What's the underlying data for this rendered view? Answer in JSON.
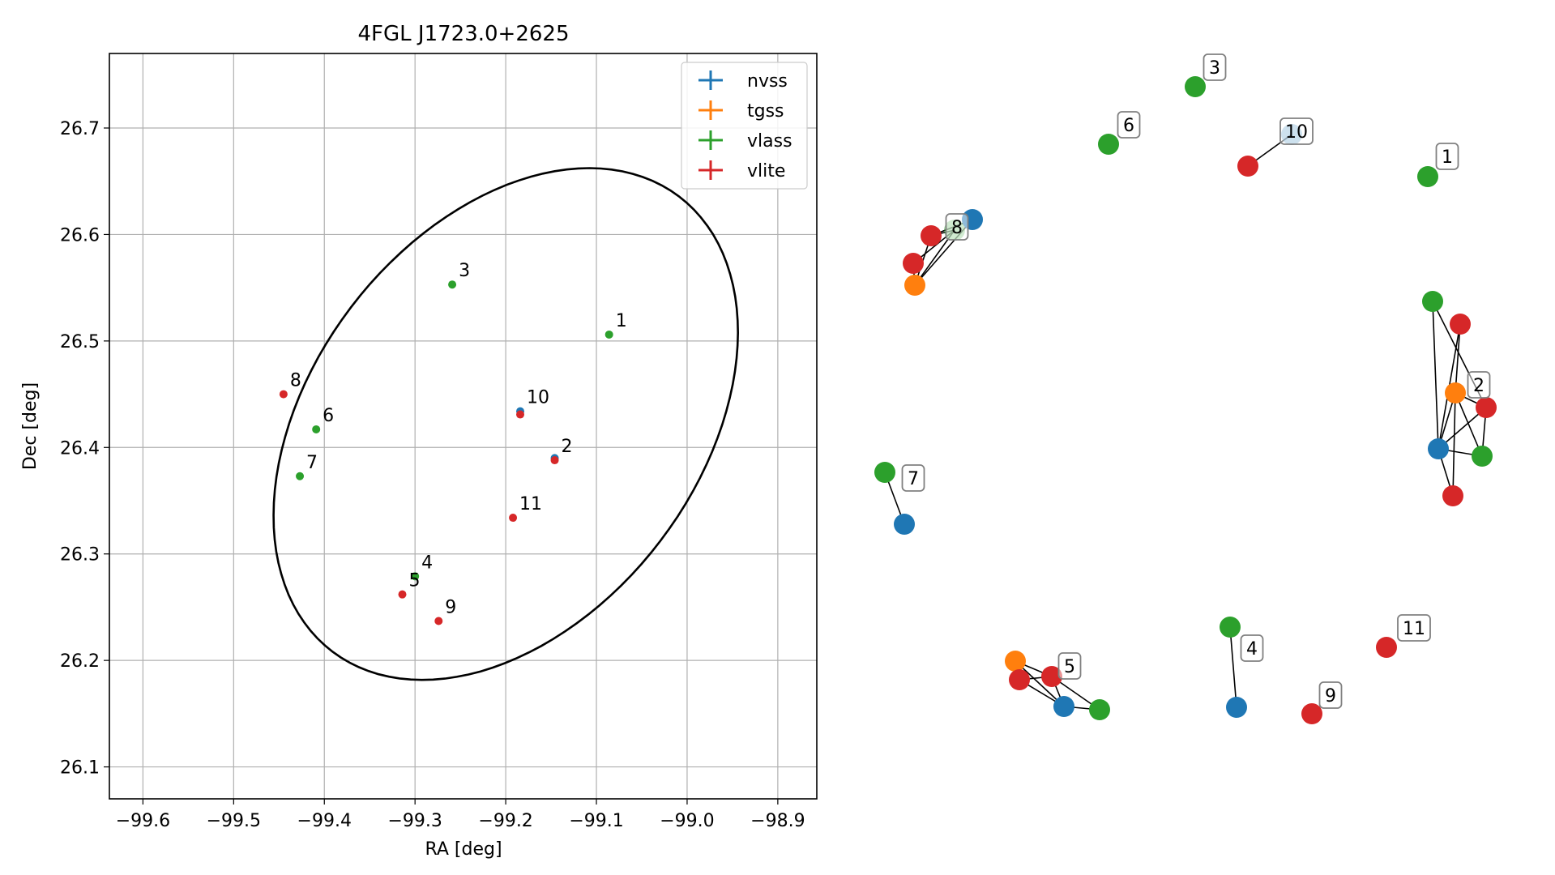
{
  "chart_data": [
    {
      "type": "scatter",
      "title": "4FGL J1723.0+2625",
      "xlabel": "RA [deg]",
      "ylabel": "Dec [deg]",
      "xlim": [
        -99.637,
        -98.857
      ],
      "ylim": [
        26.07,
        26.77
      ],
      "xticks": [
        -99.6,
        -99.5,
        -99.4,
        -99.3,
        -99.2,
        -99.1,
        -99.0,
        -98.9
      ],
      "xtick_labels": [
        "−99.6",
        "−99.5",
        "−99.4",
        "−99.3",
        "−99.2",
        "−99.1",
        "−99.0",
        "−98.9"
      ],
      "yticks": [
        26.1,
        26.2,
        26.3,
        26.4,
        26.5,
        26.6,
        26.7
      ],
      "ytick_labels": [
        "26.1",
        "26.2",
        "26.3",
        "26.4",
        "26.5",
        "26.6",
        "26.7"
      ],
      "grid": true,
      "legend_position": "top-right",
      "ellipse": {
        "center_ra": -99.2,
        "center_dec": 26.422,
        "semi_ra": 0.29,
        "semi_dec": 0.198,
        "angle_deg": 40,
        "color": "#000000"
      },
      "series": [
        {
          "name": "nvss",
          "color": "#1f77b4",
          "points": [
            {
              "x": -99.184,
              "y": 26.434
            },
            {
              "x": -99.146,
              "y": 26.39
            }
          ]
        },
        {
          "name": "tgss",
          "color": "#ff7f0e",
          "points": []
        },
        {
          "name": "vlass",
          "color": "#2ca02c",
          "points": [
            {
              "x": -99.086,
              "y": 26.506
            },
            {
              "x": -99.259,
              "y": 26.553
            },
            {
              "x": -99.3,
              "y": 26.279
            },
            {
              "x": -99.409,
              "y": 26.417
            },
            {
              "x": -99.427,
              "y": 26.373
            }
          ]
        },
        {
          "name": "vlite",
          "color": "#d62728",
          "points": [
            {
              "x": -99.146,
              "y": 26.388
            },
            {
              "x": -99.314,
              "y": 26.262
            },
            {
              "x": -99.445,
              "y": 26.45
            },
            {
              "x": -99.274,
              "y": 26.237
            },
            {
              "x": -99.184,
              "y": 26.431
            },
            {
              "x": -99.192,
              "y": 26.334
            }
          ]
        }
      ],
      "annotations": [
        {
          "text": "1",
          "x": -99.086,
          "y": 26.506
        },
        {
          "text": "2",
          "x": -99.146,
          "y": 26.388
        },
        {
          "text": "3",
          "x": -99.259,
          "y": 26.553
        },
        {
          "text": "4",
          "x": -99.3,
          "y": 26.279
        },
        {
          "text": "5",
          "x": -99.314,
          "y": 26.262
        },
        {
          "text": "6",
          "x": -99.409,
          "y": 26.417
        },
        {
          "text": "7",
          "x": -99.427,
          "y": 26.373
        },
        {
          "text": "8",
          "x": -99.445,
          "y": 26.45
        },
        {
          "text": "9",
          "x": -99.274,
          "y": 26.237
        },
        {
          "text": "10",
          "x": -99.184,
          "y": 26.434
        },
        {
          "text": "11",
          "x": -99.192,
          "y": 26.334
        }
      ]
    },
    {
      "type": "network",
      "nodes": [
        {
          "id": "v1",
          "survey": "vlass",
          "color": "#2ca02c"
        },
        {
          "id": "v3",
          "survey": "vlass",
          "color": "#2ca02c"
        },
        {
          "id": "v6",
          "survey": "vlass",
          "color": "#2ca02c"
        },
        {
          "id": "r10",
          "survey": "vlite",
          "color": "#d62728"
        },
        {
          "id": "n10",
          "survey": "nvss",
          "color": "#1f77b4",
          "faded": true
        },
        {
          "id": "n8",
          "survey": "nvss",
          "color": "#1f77b4"
        },
        {
          "id": "g8",
          "survey": "vlass",
          "color": "#2ca02c",
          "faded": true
        },
        {
          "id": "r8a",
          "survey": "vlite",
          "color": "#d62728"
        },
        {
          "id": "r8b",
          "survey": "vlite",
          "color": "#d62728"
        },
        {
          "id": "t8",
          "survey": "tgss",
          "color": "#ff7f0e"
        },
        {
          "id": "g2",
          "survey": "vlass",
          "color": "#2ca02c"
        },
        {
          "id": "r2a",
          "survey": "vlite",
          "color": "#d62728"
        },
        {
          "id": "t2",
          "survey": "tgss",
          "color": "#ff7f0e"
        },
        {
          "id": "r2b",
          "survey": "vlite",
          "color": "#d62728"
        },
        {
          "id": "n2",
          "survey": "nvss",
          "color": "#1f77b4"
        },
        {
          "id": "g2b",
          "survey": "vlass",
          "color": "#2ca02c"
        },
        {
          "id": "r2c",
          "survey": "vlite",
          "color": "#d62728"
        },
        {
          "id": "g7",
          "survey": "vlass",
          "color": "#2ca02c"
        },
        {
          "id": "n7",
          "survey": "nvss",
          "color": "#1f77b4"
        },
        {
          "id": "t5",
          "survey": "tgss",
          "color": "#ff7f0e"
        },
        {
          "id": "r5a",
          "survey": "vlite",
          "color": "#d62728"
        },
        {
          "id": "r5b",
          "survey": "vlite",
          "color": "#d62728"
        },
        {
          "id": "n5",
          "survey": "nvss",
          "color": "#1f77b4"
        },
        {
          "id": "g5",
          "survey": "vlass",
          "color": "#2ca02c"
        },
        {
          "id": "g4",
          "survey": "vlass",
          "color": "#2ca02c"
        },
        {
          "id": "n4",
          "survey": "nvss",
          "color": "#1f77b4"
        },
        {
          "id": "r9",
          "survey": "vlite",
          "color": "#d62728"
        },
        {
          "id": "r11",
          "survey": "vlite",
          "color": "#d62728"
        }
      ],
      "edges": [
        [
          "r10",
          "n10"
        ],
        [
          "n8",
          "r8a"
        ],
        [
          "n8",
          "t8"
        ],
        [
          "g8",
          "r8b"
        ],
        [
          "g8",
          "t8"
        ],
        [
          "r8a",
          "t8"
        ],
        [
          "r8b",
          "t8"
        ],
        [
          "r8a",
          "g8"
        ],
        [
          "g2",
          "r2b"
        ],
        [
          "g2",
          "n2"
        ],
        [
          "r2a",
          "t2"
        ],
        [
          "t2",
          "r2b"
        ],
        [
          "t2",
          "n2"
        ],
        [
          "t2",
          "g2b"
        ],
        [
          "t2",
          "r2c"
        ],
        [
          "r2b",
          "n2"
        ],
        [
          "r2b",
          "g2b"
        ],
        [
          "n2",
          "g2b"
        ],
        [
          "n2",
          "r2c"
        ],
        [
          "r2a",
          "n2"
        ],
        [
          "g7",
          "n7"
        ],
        [
          "t5",
          "r5b"
        ],
        [
          "t5",
          "n5"
        ],
        [
          "r5a",
          "r5b"
        ],
        [
          "r5a",
          "n5"
        ],
        [
          "r5b",
          "n5"
        ],
        [
          "r5b",
          "g5"
        ],
        [
          "n5",
          "g5"
        ],
        [
          "g4",
          "n4"
        ]
      ],
      "labels": [
        {
          "text": "1",
          "node": "v1"
        },
        {
          "text": "2",
          "node": "t2"
        },
        {
          "text": "3",
          "node": "v3"
        },
        {
          "text": "4",
          "node": "n4"
        },
        {
          "text": "5",
          "node": "r5b"
        },
        {
          "text": "6",
          "node": "v6"
        },
        {
          "text": "7",
          "node": "g7"
        },
        {
          "text": "8",
          "node": "g8"
        },
        {
          "text": "9",
          "node": "r9"
        },
        {
          "text": "10",
          "node": "n10"
        },
        {
          "text": "11",
          "node": "r11"
        }
      ]
    }
  ]
}
